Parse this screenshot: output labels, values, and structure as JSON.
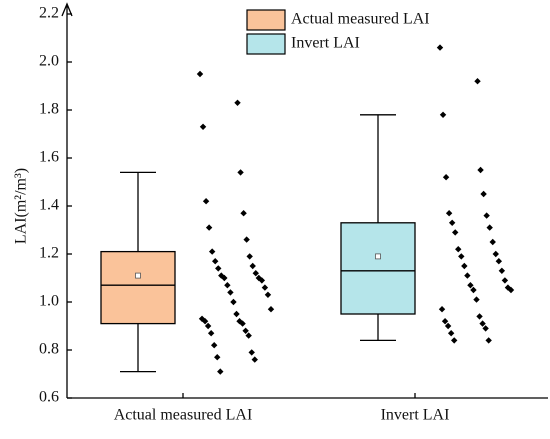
{
  "chart_data": {
    "type": "box",
    "y_label": "LAI(m²/m³)",
    "categories": [
      "Actual measured LAI",
      "Invert LAI"
    ],
    "ylim": [
      0.6,
      2.2
    ],
    "yticks": [
      0.6,
      0.8,
      {
        "value": 1,
        "label": "1.0"
      },
      1.2,
      1.4,
      1.6,
      1.8,
      {
        "value": 2,
        "label": "2.0"
      },
      2.2
    ],
    "series": [
      {
        "name": "Actual measured LAI",
        "color": "#fac39a",
        "whisker_low": 0.71,
        "q1": 0.91,
        "median": 1.07,
        "q3": 1.21,
        "whisker_high": 1.54,
        "mean": 1.11,
        "points": [
          1.95,
          1.83,
          1.73,
          1.54,
          1.42,
          1.37,
          1.31,
          1.26,
          1.21,
          1.19,
          1.17,
          1.15,
          1.14,
          1.12,
          1.11,
          1.1,
          1.1,
          1.09,
          1.07,
          1.06,
          1.04,
          1.03,
          1.0,
          0.97,
          0.95,
          0.93,
          0.92,
          0.92,
          0.91,
          0.9,
          0.88,
          0.87,
          0.86,
          0.82,
          0.79,
          0.77,
          0.76,
          0.71
        ]
      },
      {
        "name": "Invert LAI",
        "color": "#b5e5ea",
        "whisker_low": 0.84,
        "q1": 0.95,
        "median": 1.13,
        "q3": 1.33,
        "whisker_high": 1.78,
        "mean": 1.19,
        "points": [
          2.06,
          1.92,
          1.78,
          1.55,
          1.52,
          1.45,
          1.37,
          1.36,
          1.33,
          1.31,
          1.29,
          1.25,
          1.22,
          1.2,
          1.19,
          1.17,
          1.15,
          1.13,
          1.11,
          1.09,
          1.07,
          1.06,
          1.05,
          1.05,
          1.01,
          0.97,
          0.94,
          0.92,
          0.91,
          0.9,
          0.89,
          0.87,
          0.84,
          0.84
        ]
      }
    ]
  }
}
